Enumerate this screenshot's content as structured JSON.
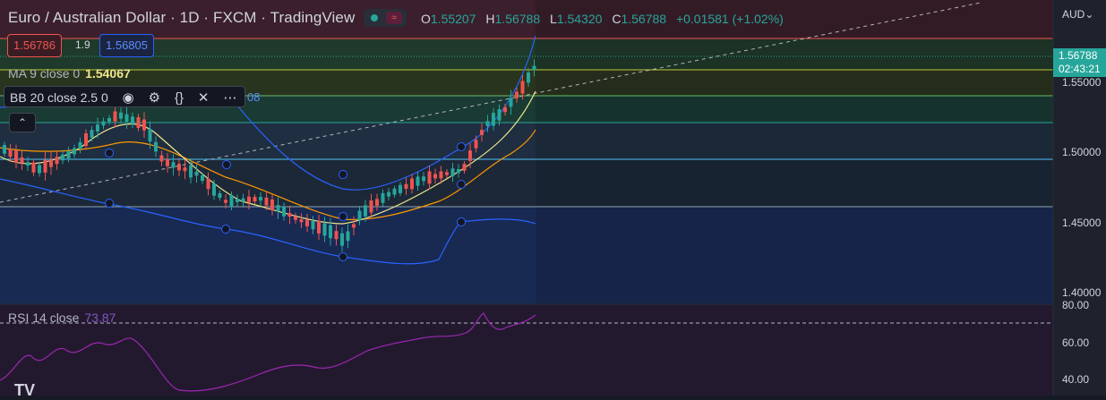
{
  "header": {
    "title": "Euro / Australian Dollar · 1D · FXCM · TradingView",
    "ohlc": [
      {
        "k": "O",
        "v": "1.55207"
      },
      {
        "k": "H",
        "v": "1.56788"
      },
      {
        "k": "L",
        "v": "1.54320"
      },
      {
        "k": "C",
        "v": "1.56788"
      }
    ],
    "change": "+0.01581 (+1.02%)",
    "toggle_icon": "wave-icon"
  },
  "trade": {
    "bid": "1.56786",
    "spread": "1.9",
    "ask": "1.56805"
  },
  "indicators": {
    "ma_label": "MA 9 close 0",
    "ma_value": "1.54067",
    "bb_label": "BB 20 close 2.5 0",
    "bb_tail": "08",
    "bb_icons": [
      "eye-icon",
      "gear-icon",
      "braces-icon",
      "close-icon",
      "more-icon"
    ],
    "bb_glyphs": [
      "◉",
      "⚙",
      "{}",
      "✕",
      "⋯"
    ],
    "collapse_glyph": "⌃"
  },
  "price_axis": {
    "currency": "AUD⌄",
    "current_price": "1.56788",
    "countdown": "02:43:21",
    "ticks": [
      "1.55000",
      "1.50000",
      "1.45000",
      "1.40000"
    ]
  },
  "rsi": {
    "label": "RSI 14 close",
    "value": "73.87",
    "ticks": [
      "80.00",
      "60.00",
      "40.00"
    ]
  },
  "logo": "TV",
  "colors": {
    "up": "#26a69a",
    "down": "#ef5350",
    "ma": "#f0e68c",
    "bb_band": "#2962ff",
    "bb_basis": "#ff9800",
    "rsi": "#9c27b0"
  }
}
